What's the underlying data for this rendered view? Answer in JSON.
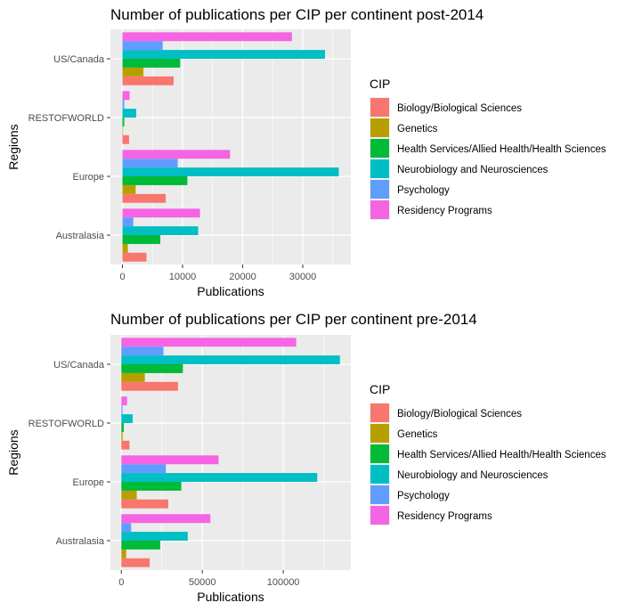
{
  "chart_data": [
    {
      "type": "bar",
      "orientation": "horizontal",
      "position": "dodge",
      "title": "Number of publications per CIP per continent post-2014",
      "xlabel": "Publications",
      "ylabel": "Regions",
      "categories": [
        "US/Canada",
        "RESTOFWORLD",
        "Europe",
        "Australasia"
      ],
      "xlim": [
        -2000,
        38000
      ],
      "xticks": [
        0,
        10000,
        20000,
        30000
      ],
      "xtick_labels": [
        "0",
        "10000",
        "20000",
        "30000"
      ],
      "grid": true,
      "legend_title": "CIP",
      "legend_position": "right",
      "series": [
        {
          "name": "Biology/Biological Sciences",
          "color": "#F8766D",
          "values": [
            8500,
            1100,
            7200,
            4000
          ]
        },
        {
          "name": "Genetics",
          "color": "#B79F00",
          "values": [
            3500,
            100,
            2200,
            900
          ]
        },
        {
          "name": "Health Services/Allied Health/Health Sciences",
          "color": "#00BA38",
          "values": [
            9600,
            300,
            10800,
            6300
          ]
        },
        {
          "name": "Neurobiology and Neurosciences",
          "color": "#00BFC4",
          "values": [
            33700,
            2300,
            36000,
            12600
          ]
        },
        {
          "name": "Psychology",
          "color": "#619CFF",
          "values": [
            6700,
            300,
            9200,
            1800
          ]
        },
        {
          "name": "Residency Programs",
          "color": "#F564E3",
          "values": [
            28200,
            1200,
            17900,
            12900
          ]
        }
      ]
    },
    {
      "type": "bar",
      "orientation": "horizontal",
      "position": "dodge",
      "title": "Number of publications per CIP per continent pre-2014",
      "xlabel": "Publications",
      "ylabel": "Regions",
      "categories": [
        "US/Canada",
        "RESTOFWORLD",
        "Europe",
        "Australasia"
      ],
      "xlim": [
        -6750,
        141750
      ],
      "xticks": [
        0,
        50000,
        100000
      ],
      "xtick_labels": [
        "0",
        "50000",
        "100000"
      ],
      "grid": true,
      "legend_title": "CIP",
      "legend_position": "right",
      "series": [
        {
          "name": "Biology/Biological Sciences",
          "color": "#F8766D",
          "values": [
            35000,
            5000,
            29000,
            17500
          ]
        },
        {
          "name": "Genetics",
          "color": "#B79F00",
          "values": [
            14500,
            800,
            9500,
            3000
          ]
        },
        {
          "name": "Health Services/Allied Health/Health Sciences",
          "color": "#00BA38",
          "values": [
            38000,
            1500,
            37000,
            24000
          ]
        },
        {
          "name": "Neurobiology and Neurosciences",
          "color": "#00BFC4",
          "values": [
            135000,
            7000,
            121000,
            41000
          ]
        },
        {
          "name": "Psychology",
          "color": "#619CFF",
          "values": [
            26000,
            700,
            27500,
            6000
          ]
        },
        {
          "name": "Residency Programs",
          "color": "#F564E3",
          "values": [
            108000,
            3500,
            60000,
            55000
          ]
        }
      ]
    }
  ]
}
